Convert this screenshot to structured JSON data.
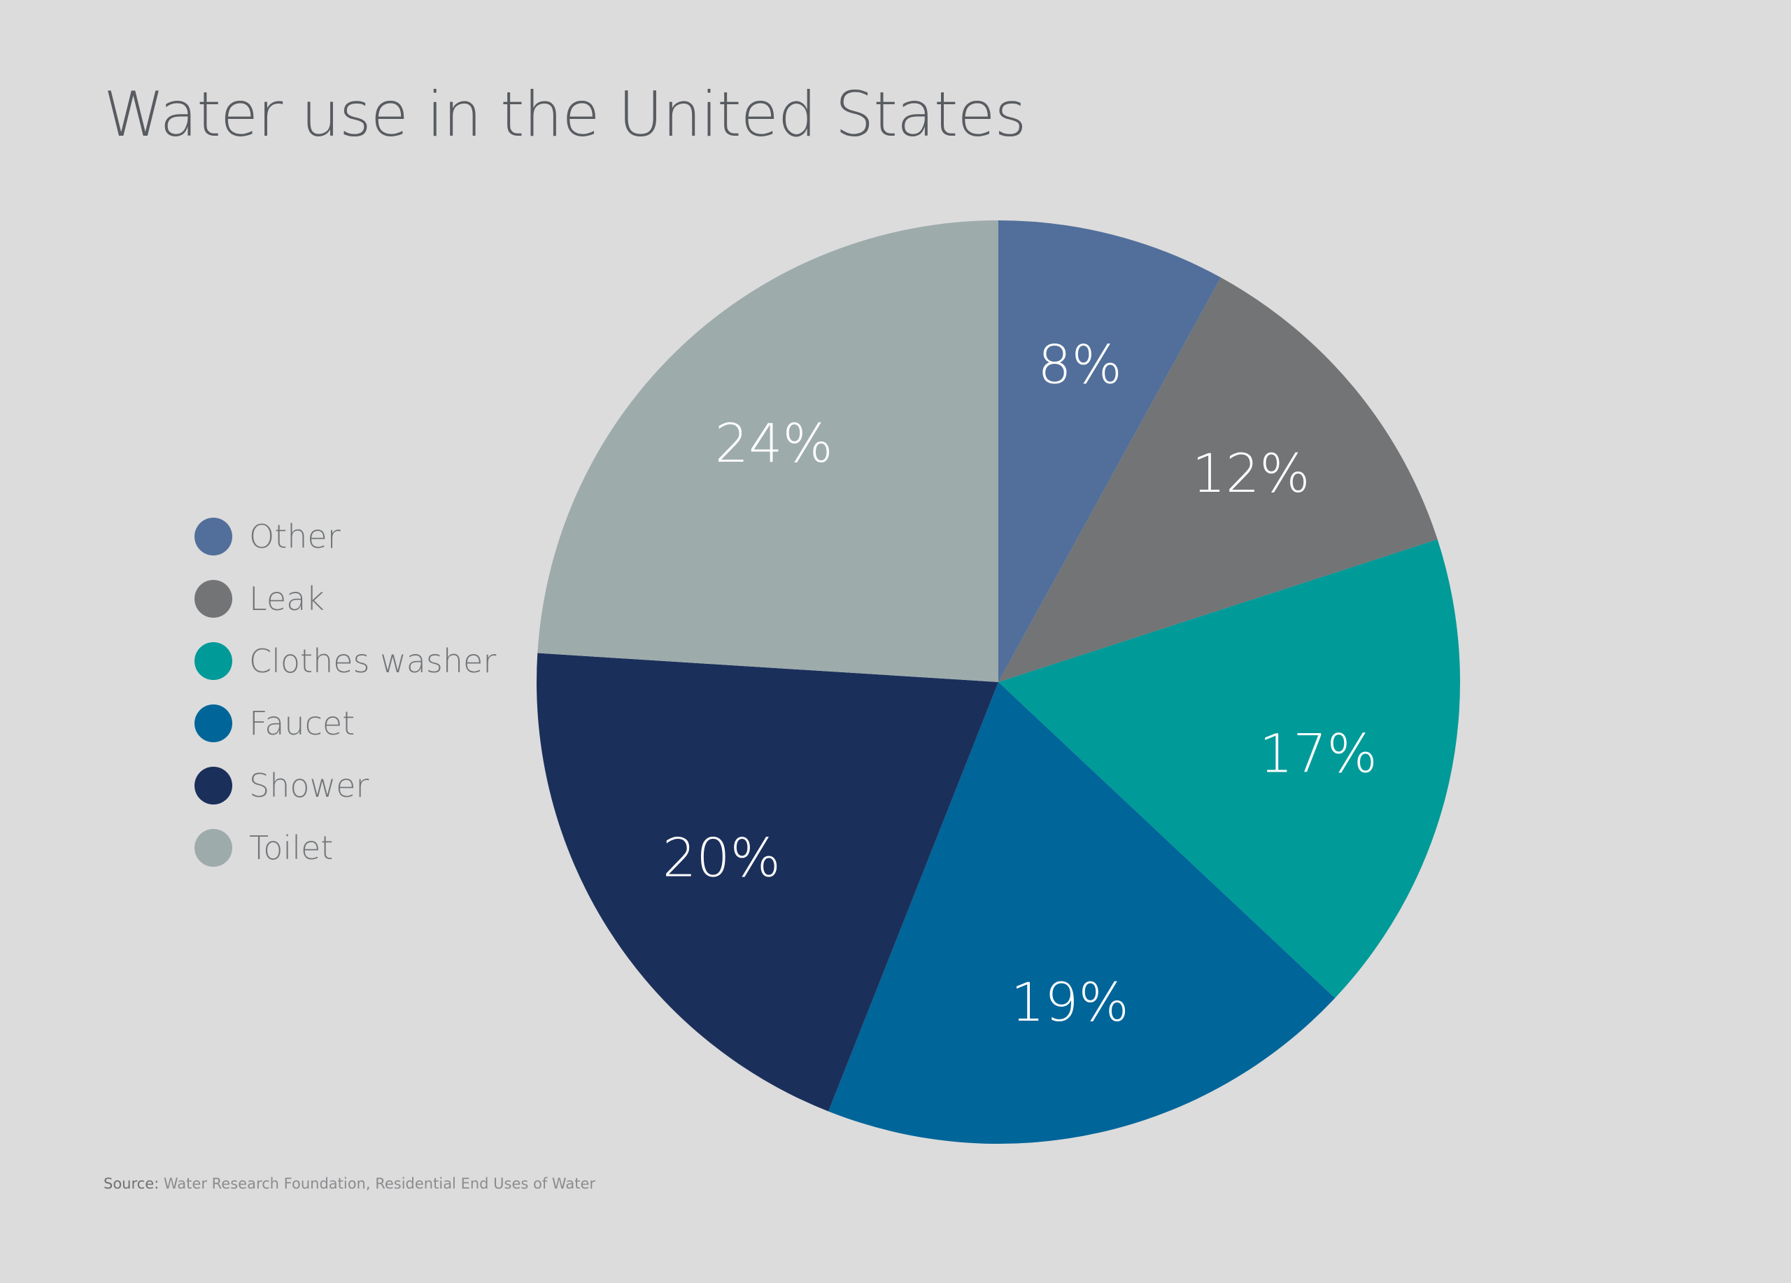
{
  "chart_data": {
    "type": "pie",
    "title": "Water use in the United States",
    "slices": [
      {
        "name": "Other",
        "value": 8,
        "label": "8%",
        "color": "#516f9a"
      },
      {
        "name": "Leak",
        "value": 12,
        "label": "12%",
        "color": "#737476"
      },
      {
        "name": "Clothes washer",
        "value": 17,
        "label": "17%",
        "color": "#009a98"
      },
      {
        "name": "Faucet",
        "value": 19,
        "label": "19%",
        "color": "#006599"
      },
      {
        "name": "Shower",
        "value": 20,
        "label": "20%",
        "color": "#1b2f5b"
      },
      {
        "name": "Toilet",
        "value": 24,
        "label": "24%",
        "color": "#9eabab"
      }
    ],
    "legend": [
      "Other",
      "Leak",
      "Clothes washer",
      "Faucet",
      "Shower",
      "Toilet"
    ],
    "legend_placement": "left",
    "start_angle": "12 o'clock",
    "direction": "clockwise"
  },
  "source": {
    "key": "Source:",
    "text": "Water Research Foundation, Residential End Uses of Water"
  }
}
